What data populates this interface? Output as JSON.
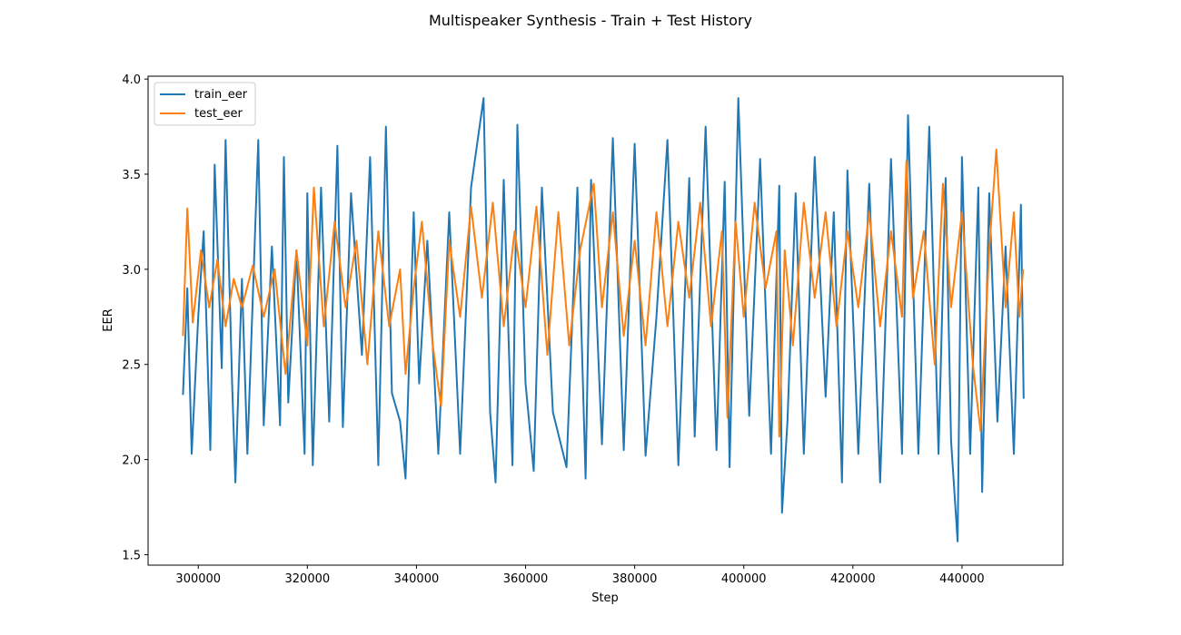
{
  "chart_data": {
    "type": "line",
    "title": "Multispeaker Synthesis - Train + Test History",
    "xlabel": "Step",
    "ylabel": "EER",
    "xlim": [
      290800,
      458500
    ],
    "ylim": [
      1.445,
      4.015
    ],
    "x_ticks": [
      300000,
      320000,
      340000,
      360000,
      380000,
      400000,
      420000,
      440000
    ],
    "x_tick_labels": [
      "300000",
      "320000",
      "340000",
      "360000",
      "380000",
      "400000",
      "420000",
      "440000"
    ],
    "y_ticks": [
      1.5,
      2.0,
      2.5,
      3.0,
      3.5,
      4.0
    ],
    "y_tick_labels": [
      "1.5",
      "2.0",
      "2.5",
      "3.0",
      "3.5",
      "4.0"
    ],
    "grid": false,
    "legend": "top-left",
    "series": [
      {
        "name": "train_eer",
        "color": "#1f77b4",
        "x": [
          297200,
          298000,
          298800,
          300000,
          301000,
          302200,
          303000,
          304300,
          305000,
          306200,
          306800,
          308000,
          309000,
          311000,
          312000,
          313500,
          315000,
          315700,
          316500,
          318000,
          319500,
          320000,
          321000,
          322500,
          324000,
          325500,
          326500,
          328000,
          330000,
          331500,
          333000,
          334400,
          335500,
          337000,
          338000,
          339500,
          340500,
          342000,
          344000,
          346000,
          348000,
          350000,
          352300,
          353500,
          354500,
          356000,
          357600,
          358500,
          360000,
          361500,
          363000,
          365000,
          367500,
          369500,
          371000,
          372000,
          374000,
          376000,
          378000,
          380000,
          382000,
          384000,
          386000,
          388000,
          390000,
          391000,
          393000,
          395000,
          396500,
          397400,
          399000,
          401000,
          403000,
          405000,
          406500,
          407000,
          408000,
          409500,
          411000,
          413000,
          415000,
          416500,
          418000,
          419000,
          421000,
          423000,
          425000,
          427000,
          429000,
          430100,
          432000,
          434000,
          435700,
          437000,
          438000,
          439200,
          440000,
          441500,
          443000,
          443700,
          445000,
          446500,
          448000,
          449500,
          450800,
          451300
        ],
        "values": [
          2.34,
          2.9,
          2.03,
          2.75,
          3.2,
          2.05,
          3.55,
          2.48,
          3.68,
          2.4,
          1.88,
          2.95,
          2.03,
          3.68,
          2.18,
          3.12,
          2.18,
          3.59,
          2.3,
          3.1,
          2.03,
          3.4,
          1.97,
          3.43,
          2.2,
          3.65,
          2.17,
          3.4,
          2.55,
          3.59,
          1.97,
          3.75,
          2.35,
          2.2,
          1.9,
          3.3,
          2.4,
          3.15,
          2.03,
          3.3,
          2.03,
          3.43,
          3.9,
          2.25,
          1.88,
          3.47,
          1.97,
          3.76,
          2.4,
          1.94,
          3.43,
          2.25,
          1.96,
          3.43,
          1.9,
          3.47,
          2.08,
          3.69,
          2.05,
          3.66,
          2.02,
          2.75,
          3.68,
          1.97,
          3.48,
          2.12,
          3.75,
          2.05,
          3.46,
          1.96,
          3.9,
          2.23,
          3.58,
          2.03,
          3.44,
          1.72,
          2.2,
          3.4,
          2.03,
          3.59,
          2.33,
          3.3,
          1.88,
          3.52,
          2.03,
          3.45,
          1.88,
          3.58,
          2.03,
          3.81,
          2.03,
          3.75,
          2.03,
          3.48,
          2.1,
          1.57,
          3.59,
          2.03,
          3.43,
          1.83,
          3.4,
          2.2,
          3.12,
          2.03,
          3.34,
          2.32
        ]
      },
      {
        "name": "test_eer",
        "color": "#ff7f0e",
        "x": [
          297200,
          298000,
          299000,
          300500,
          302000,
          303500,
          305000,
          306500,
          308000,
          310000,
          312000,
          314000,
          316000,
          318000,
          320000,
          321200,
          323000,
          325000,
          327000,
          329000,
          331000,
          333000,
          335000,
          337000,
          338000,
          339500,
          341000,
          343000,
          344500,
          346000,
          348000,
          350000,
          352000,
          354000,
          356000,
          358000,
          360000,
          362000,
          364000,
          366000,
          368000,
          370000,
          372500,
          374000,
          376000,
          378000,
          380000,
          382000,
          384000,
          386000,
          388000,
          390000,
          392000,
          394000,
          396000,
          397000,
          398500,
          400000,
          402000,
          404000,
          406000,
          406500,
          407500,
          409000,
          411000,
          413000,
          415000,
          417000,
          419000,
          421000,
          423000,
          425000,
          427000,
          429000,
          429800,
          431000,
          433000,
          435000,
          436500,
          438000,
          440000,
          442000,
          443400,
          445000,
          446300,
          448000,
          449500,
          450500,
          451200
        ],
        "values": [
          2.65,
          3.32,
          2.72,
          3.1,
          2.8,
          3.05,
          2.7,
          2.95,
          2.8,
          3.02,
          2.75,
          3.0,
          2.45,
          3.1,
          2.6,
          3.43,
          2.7,
          3.25,
          2.8,
          3.15,
          2.5,
          3.2,
          2.7,
          3.0,
          2.45,
          2.9,
          3.25,
          2.6,
          2.28,
          3.15,
          2.75,
          3.33,
          2.85,
          3.35,
          2.7,
          3.2,
          2.8,
          3.33,
          2.55,
          3.3,
          2.6,
          3.1,
          3.45,
          2.8,
          3.3,
          2.65,
          3.15,
          2.6,
          3.3,
          2.7,
          3.25,
          2.85,
          3.35,
          2.7,
          3.2,
          2.22,
          3.25,
          2.75,
          3.35,
          2.9,
          3.2,
          2.12,
          3.1,
          2.6,
          3.35,
          2.85,
          3.3,
          2.7,
          3.2,
          2.8,
          3.3,
          2.7,
          3.2,
          2.75,
          3.57,
          2.85,
          3.2,
          2.5,
          3.45,
          2.8,
          3.3,
          2.5,
          2.15,
          3.1,
          3.63,
          2.8,
          3.3,
          2.75,
          3.0
        ]
      }
    ]
  }
}
